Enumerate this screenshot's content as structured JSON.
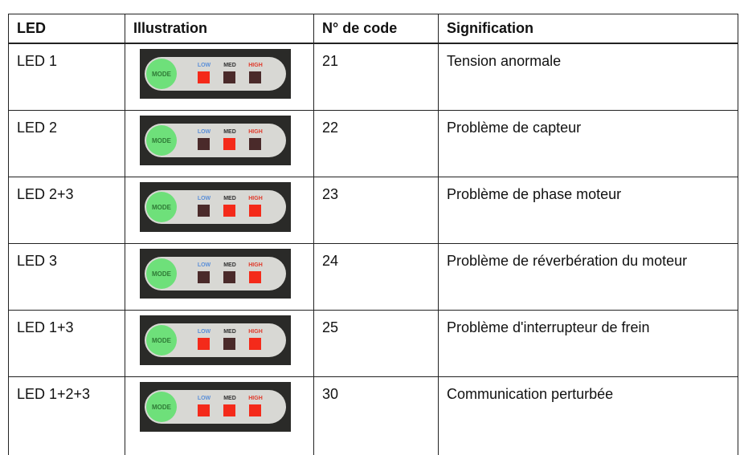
{
  "table": {
    "header": [
      "LED",
      "Illustration",
      "N° de code",
      "Signification"
    ],
    "panel_labels": {
      "mode": "MODE",
      "low": "LOW",
      "med": "MED",
      "high": "HIGH"
    },
    "rows": [
      {
        "led": "LED 1",
        "lit": [
          true,
          false,
          false
        ],
        "code": "21",
        "meaning": "Tension anormale"
      },
      {
        "led": "LED 2",
        "lit": [
          false,
          true,
          false
        ],
        "code": "22",
        "meaning": "Problème de capteur"
      },
      {
        "led": "LED 2+3",
        "lit": [
          false,
          true,
          true
        ],
        "code": "23",
        "meaning": "Problème de phase moteur"
      },
      {
        "led": "LED 3",
        "lit": [
          false,
          false,
          true
        ],
        "code": "24",
        "meaning": "Problème de réverbération du moteur"
      },
      {
        "led": "LED 1+3",
        "lit": [
          true,
          false,
          true
        ],
        "code": "25",
        "meaning": "Problème d'interrupteur de frein"
      },
      {
        "led": "LED 1+2+3",
        "lit": [
          true,
          true,
          true
        ],
        "code": "30",
        "meaning": "Communication perturbée"
      }
    ]
  }
}
